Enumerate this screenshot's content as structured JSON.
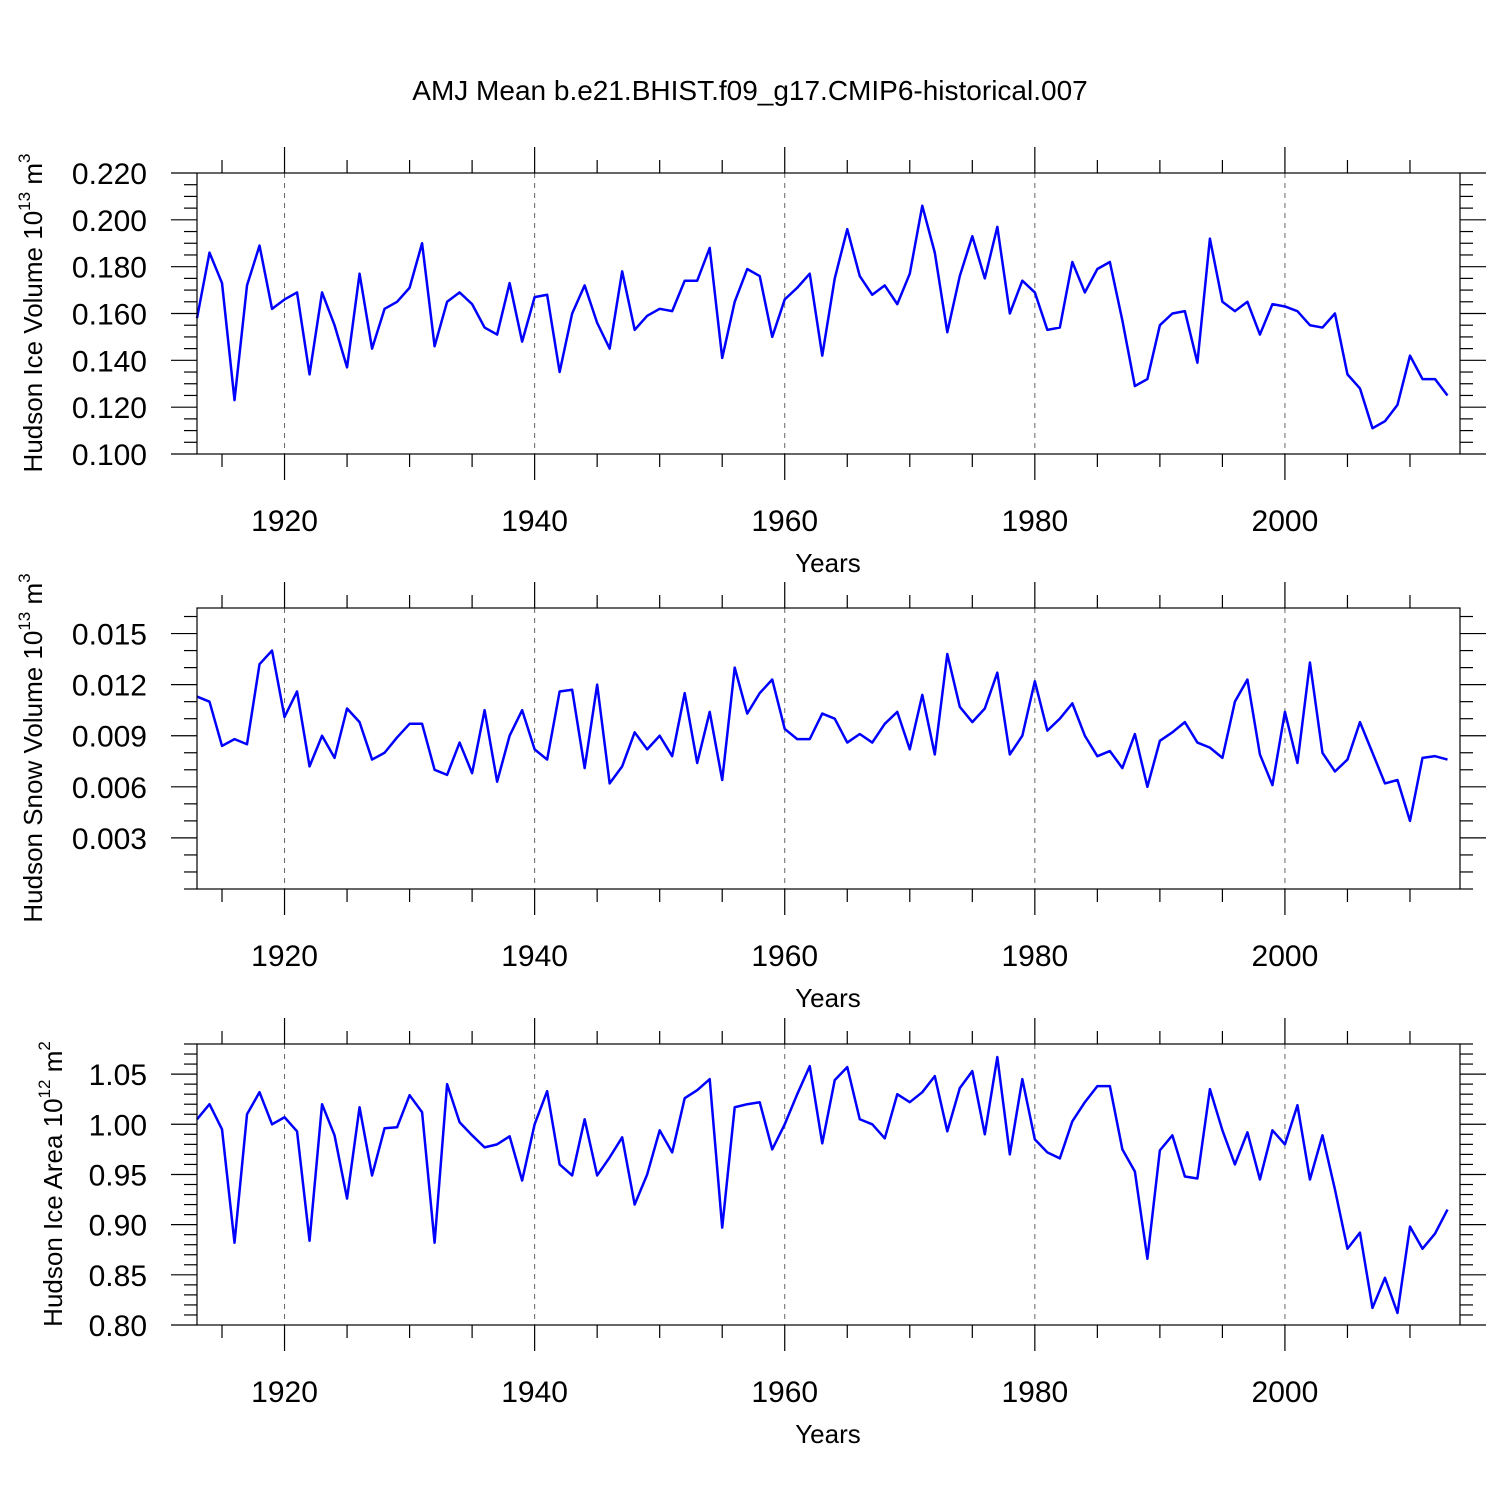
{
  "title": "AMJ Mean b.e21.BHIST.f09_g17.CMIP6-historical.007",
  "line_color": "#0000ff",
  "chart_data": [
    {
      "type": "line",
      "name": "ice-volume",
      "ylabel_main": "Hudson Ice Volume 10",
      "ylabel_exp": "13",
      "ylabel_unit": " m",
      "ylabel_unit_exp": "3",
      "xlabel": "Years",
      "xlim": [
        1913,
        2014
      ],
      "xticks": [
        1920,
        1940,
        1960,
        1980,
        2000
      ],
      "xtick_labels": [
        "1920",
        "1940",
        "1960",
        "1980",
        "2000"
      ],
      "ylim": [
        0.1,
        0.22
      ],
      "yticks": [
        0.1,
        0.12,
        0.14,
        0.16,
        0.18,
        0.2,
        0.22
      ],
      "ytick_labels": [
        "0.100",
        "0.120",
        "0.140",
        "0.160",
        "0.180",
        "0.200",
        "0.220"
      ],
      "yminor_step": 0.005,
      "x_start": 1913,
      "values": [
        0.158,
        0.186,
        0.173,
        0.123,
        0.172,
        0.189,
        0.162,
        0.166,
        0.169,
        0.134,
        0.169,
        0.155,
        0.137,
        0.177,
        0.145,
        0.162,
        0.165,
        0.171,
        0.19,
        0.146,
        0.165,
        0.169,
        0.164,
        0.154,
        0.151,
        0.173,
        0.148,
        0.167,
        0.168,
        0.135,
        0.16,
        0.172,
        0.156,
        0.145,
        0.178,
        0.153,
        0.159,
        0.162,
        0.161,
        0.174,
        0.174,
        0.188,
        0.141,
        0.165,
        0.179,
        0.176,
        0.15,
        0.166,
        0.171,
        0.177,
        0.142,
        0.175,
        0.196,
        0.176,
        0.168,
        0.172,
        0.164,
        0.177,
        0.206,
        0.186,
        0.152,
        0.176,
        0.193,
        0.175,
        0.197,
        0.16,
        0.174,
        0.169,
        0.153,
        0.154,
        0.182,
        0.169,
        0.179,
        0.182,
        0.157,
        0.129,
        0.132,
        0.155,
        0.16,
        0.161,
        0.139,
        0.192,
        0.165,
        0.161,
        0.165,
        0.151,
        0.164,
        0.163,
        0.161,
        0.155,
        0.154,
        0.16,
        0.134,
        0.128,
        0.111,
        0.114,
        0.121,
        0.142,
        0.132,
        0.132,
        0.125
      ]
    },
    {
      "type": "line",
      "name": "snow-volume",
      "ylabel_main": "Hudson Snow Volume 10",
      "ylabel_exp": "13",
      "ylabel_unit": " m",
      "ylabel_unit_exp": "3",
      "xlabel": "Years",
      "xlim": [
        1913,
        2014
      ],
      "xticks": [
        1920,
        1940,
        1960,
        1980,
        2000
      ],
      "xtick_labels": [
        "1920",
        "1940",
        "1960",
        "1980",
        "2000"
      ],
      "ylim": [
        0.0,
        0.0165
      ],
      "yticks": [
        0.003,
        0.006,
        0.009,
        0.012,
        0.015
      ],
      "ytick_labels": [
        "0.003",
        "0.006",
        "0.009",
        "0.012",
        "0.015"
      ],
      "yminor_step": 0.001,
      "x_start": 1913,
      "values": [
        0.0113,
        0.011,
        0.0084,
        0.0088,
        0.0085,
        0.0132,
        0.014,
        0.0101,
        0.0116,
        0.0072,
        0.009,
        0.0077,
        0.0106,
        0.0098,
        0.0076,
        0.008,
        0.0089,
        0.0097,
        0.0097,
        0.007,
        0.0067,
        0.0086,
        0.0068,
        0.0105,
        0.0063,
        0.009,
        0.0105,
        0.0082,
        0.0076,
        0.0116,
        0.0117,
        0.0071,
        0.012,
        0.0062,
        0.0072,
        0.0092,
        0.0082,
        0.009,
        0.0078,
        0.0115,
        0.0074,
        0.0104,
        0.0064,
        0.013,
        0.0103,
        0.0115,
        0.0123,
        0.0094,
        0.0088,
        0.0088,
        0.0103,
        0.01,
        0.0086,
        0.0091,
        0.0086,
        0.0097,
        0.0104,
        0.0082,
        0.0114,
        0.0079,
        0.0138,
        0.0107,
        0.0098,
        0.0106,
        0.0127,
        0.0079,
        0.009,
        0.0122,
        0.0093,
        0.01,
        0.0109,
        0.009,
        0.0078,
        0.0081,
        0.0071,
        0.0091,
        0.006,
        0.0087,
        0.0092,
        0.0098,
        0.0086,
        0.0083,
        0.0077,
        0.011,
        0.0123,
        0.0079,
        0.0061,
        0.0104,
        0.0074,
        0.0133,
        0.008,
        0.0069,
        0.0076,
        0.0098,
        0.008,
        0.0062,
        0.0064,
        0.004,
        0.0077,
        0.0078,
        0.0076
      ]
    },
    {
      "type": "line",
      "name": "ice-area",
      "ylabel_main": "Hudson Ice Area 10",
      "ylabel_exp": "12",
      "ylabel_unit": " m",
      "ylabel_unit_exp": "2",
      "xlabel": "Years",
      "xlim": [
        1913,
        2014
      ],
      "xticks": [
        1920,
        1940,
        1960,
        1980,
        2000
      ],
      "xtick_labels": [
        "1920",
        "1940",
        "1960",
        "1980",
        "2000"
      ],
      "ylim": [
        0.8,
        1.08
      ],
      "yticks": [
        0.8,
        0.85,
        0.9,
        0.95,
        1.0,
        1.05
      ],
      "ytick_labels": [
        "0.80",
        "0.85",
        "0.90",
        "0.95",
        "1.00",
        "1.05"
      ],
      "yminor_step": 0.01,
      "x_start": 1913,
      "values": [
        1.005,
        1.02,
        0.995,
        0.882,
        1.01,
        1.032,
        1.0,
        1.007,
        0.993,
        0.884,
        1.02,
        0.989,
        0.926,
        1.017,
        0.949,
        0.996,
        0.997,
        1.029,
        1.012,
        0.882,
        1.04,
        1.002,
        0.989,
        0.977,
        0.98,
        0.988,
        0.944,
        1.0,
        1.033,
        0.96,
        0.949,
        1.005,
        0.949,
        0.967,
        0.987,
        0.92,
        0.95,
        0.994,
        0.972,
        1.026,
        1.034,
        1.045,
        0.897,
        1.017,
        1.02,
        1.022,
        0.975,
        1.0,
        1.03,
        1.058,
        0.981,
        1.044,
        1.057,
        1.005,
        1.0,
        0.986,
        1.03,
        1.022,
        1.032,
        1.048,
        0.993,
        1.036,
        1.053,
        0.99,
        1.067,
        0.97,
        1.045,
        0.985,
        0.972,
        0.966,
        1.003,
        1.022,
        1.038,
        1.038,
        0.975,
        0.953,
        0.866,
        0.974,
        0.989,
        0.948,
        0.946,
        1.035,
        0.994,
        0.96,
        0.992,
        0.945,
        0.994,
        0.98,
        1.019,
        0.945,
        0.989,
        0.935,
        0.876,
        0.892,
        0.817,
        0.847,
        0.812,
        0.898,
        0.876,
        0.891,
        0.915
      ]
    }
  ]
}
